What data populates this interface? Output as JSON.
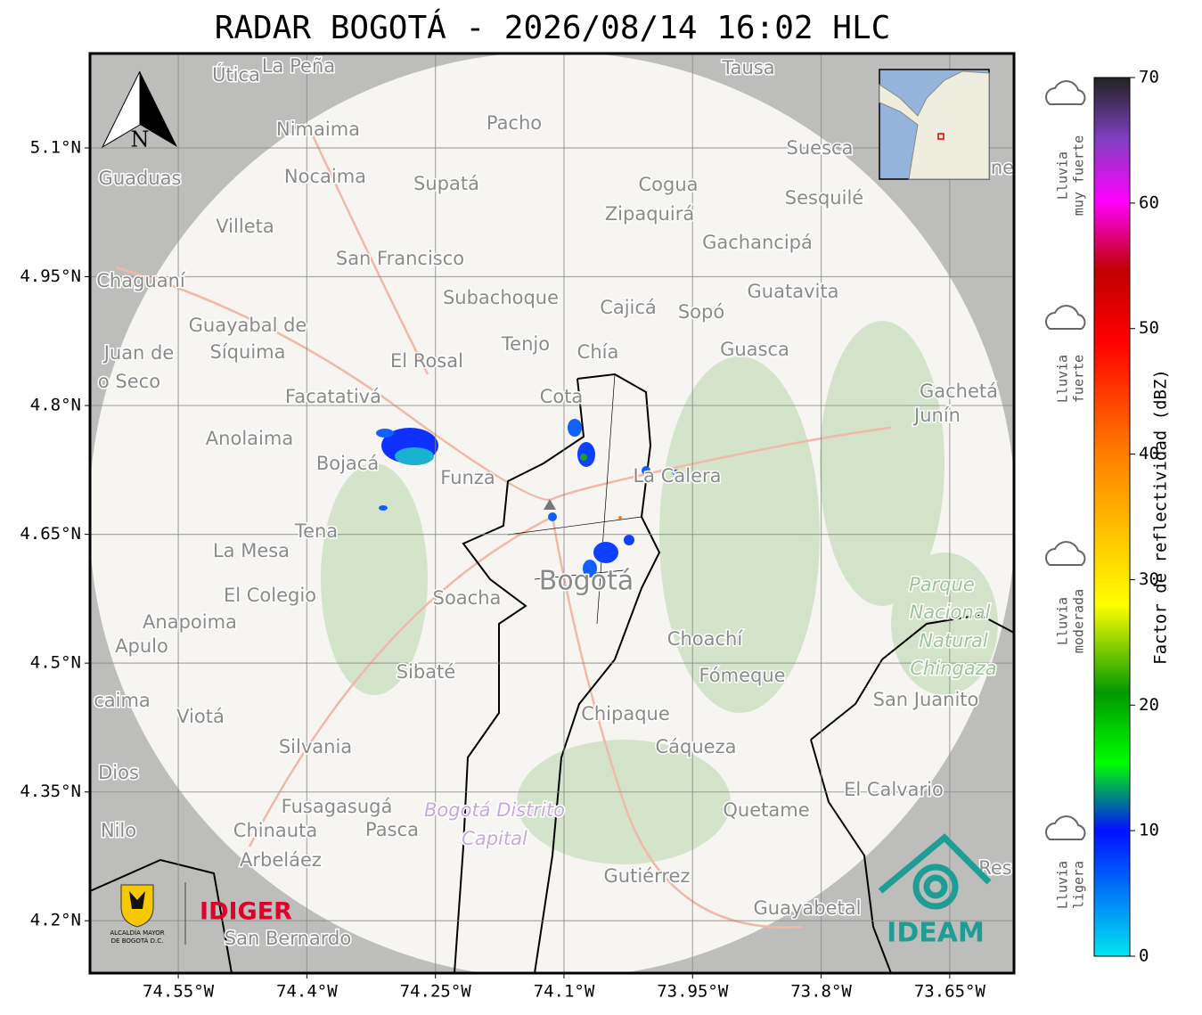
{
  "title": "RADAR BOGOTÁ - 2026/08/14 16:02 HLC",
  "map": {
    "lonlim": [
      -74.653,
      -73.575
    ],
    "latlim": [
      4.139,
      5.21
    ],
    "lon_ticks": [
      {
        "value": -74.55,
        "label": "74.55°W"
      },
      {
        "value": -74.4,
        "label": "74.4°W"
      },
      {
        "value": -74.25,
        "label": "74.25°W"
      },
      {
        "value": -74.1,
        "label": "74.1°W"
      },
      {
        "value": -73.95,
        "label": "73.95°W"
      },
      {
        "value": -73.8,
        "label": "73.8°W"
      },
      {
        "value": -73.65,
        "label": "73.65°W"
      }
    ],
    "lat_ticks": [
      {
        "value": 5.1,
        "label": "5.1°N"
      },
      {
        "value": 4.95,
        "label": "4.95°N"
      },
      {
        "value": 4.8,
        "label": "4.8°N"
      },
      {
        "value": 4.65,
        "label": "4.65°N"
      },
      {
        "value": 4.5,
        "label": "4.5°N"
      },
      {
        "value": 4.35,
        "label": "4.35°N"
      },
      {
        "value": 4.2,
        "label": "4.2°N"
      }
    ],
    "places": [
      "Útica",
      "La Peña",
      "Tausa",
      "Pacho",
      "Nimaima",
      "Guaduas",
      "Nocaima",
      "Supatá",
      "Cogua",
      "Suesca",
      "Sesquilé",
      "Zipaquirá",
      "Villeta",
      "Gachancipá",
      "San Francisco",
      "Chaguaní",
      "Guatavita",
      "Subachoque",
      "Cajicá",
      "Sopó",
      "Guayabal de",
      "Síquima",
      "Tenjo",
      "Chía",
      "Guasca",
      "Juan de",
      "o Seco",
      "El Rosal",
      "Gachetá",
      "Junín",
      "Facatativá",
      "Cota",
      "Anolaima",
      "Bojacá",
      "Funza",
      "La Calera",
      "Tena",
      "La Mesa",
      "El Colegio",
      "Soacha",
      "Bogotá",
      "Anapoima",
      "Apulo",
      "Choachí",
      "Sibaté",
      "Fómeque",
      "San Juanito",
      "caima",
      "Viotá",
      "Chipaque",
      "Silvania",
      "Cáqueza",
      "Dios",
      "El Calvario",
      "Fusagasugá",
      "Quetame",
      "Nilo",
      "Chinauta",
      "Pasca",
      "Arbeláez",
      "Gutiérrez",
      "Res",
      "Guayabetal",
      "San Bernardo",
      "ne"
    ],
    "park": [
      "Parque",
      "Nacional",
      "Natural",
      "Chingaza"
    ],
    "district": [
      "Bogotá Distrito",
      "Capital"
    ]
  },
  "colorbar": {
    "label": "Factor de reflectividad (dBZ)",
    "lim": [
      0,
      70
    ],
    "ticks": [
      0,
      10,
      20,
      30,
      40,
      50,
      60,
      70
    ]
  },
  "rain_levels": [
    [
      "Lluvia",
      "muy fuerte"
    ],
    [
      "Lluvia",
      "fuerte"
    ],
    [
      "Lluvia",
      "moderada"
    ],
    [
      "Lluvia",
      "ligera"
    ]
  ],
  "logos": {
    "alcaldia": [
      "ALCALDÍA MAYOR",
      "DE BOGOTÁ D.C."
    ],
    "idiger": "IDIGER",
    "ideam": "IDEAM"
  },
  "north": "N"
}
